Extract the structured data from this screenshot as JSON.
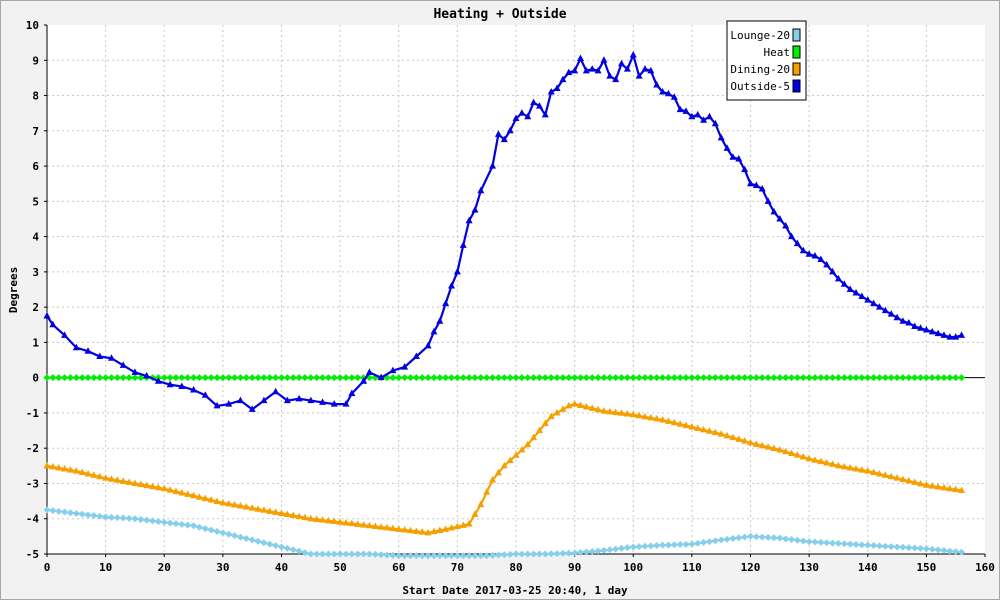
{
  "chart_data": {
    "type": "line",
    "title": "Heating + Outside",
    "xlabel": "Start Date 2017-03-25 20:40, 1 day",
    "ylabel": "Degrees",
    "xlim": [
      0,
      160
    ],
    "ylim": [
      -5,
      10
    ],
    "x_ticks": [
      0,
      10,
      20,
      30,
      40,
      50,
      60,
      70,
      80,
      90,
      100,
      110,
      120,
      130,
      140,
      150,
      160
    ],
    "y_ticks": [
      -5,
      -4,
      -3,
      -2,
      -1,
      0,
      1,
      2,
      3,
      4,
      5,
      6,
      7,
      8,
      9,
      10
    ],
    "grid": true,
    "legend_position": "top-right",
    "series": [
      {
        "name": "Lounge-20",
        "color": "#87ceeb",
        "marker": "diamond",
        "points": [
          [
            0,
            -3.75
          ],
          [
            5,
            -3.85
          ],
          [
            10,
            -3.95
          ],
          [
            15,
            -4.0
          ],
          [
            20,
            -4.1
          ],
          [
            25,
            -4.2
          ],
          [
            30,
            -4.4
          ],
          [
            35,
            -4.6
          ],
          [
            40,
            -4.8
          ],
          [
            45,
            -5.0
          ],
          [
            50,
            -5.0
          ],
          [
            55,
            -5.0
          ],
          [
            60,
            -5.05
          ],
          [
            65,
            -5.05
          ],
          [
            70,
            -5.05
          ],
          [
            75,
            -5.05
          ],
          [
            80,
            -5.0
          ],
          [
            85,
            -5.0
          ],
          [
            90,
            -4.97
          ],
          [
            95,
            -4.9
          ],
          [
            100,
            -4.8
          ],
          [
            105,
            -4.75
          ],
          [
            110,
            -4.72
          ],
          [
            115,
            -4.6
          ],
          [
            120,
            -4.5
          ],
          [
            125,
            -4.55
          ],
          [
            130,
            -4.65
          ],
          [
            135,
            -4.7
          ],
          [
            140,
            -4.75
          ],
          [
            145,
            -4.8
          ],
          [
            150,
            -4.85
          ],
          [
            156,
            -4.95
          ]
        ]
      },
      {
        "name": "Heat",
        "color": "#00ee00",
        "marker": "diamond",
        "points": [
          [
            0,
            0
          ],
          [
            156,
            0
          ]
        ]
      },
      {
        "name": "Dining-20",
        "color": "#f5a000",
        "marker": "triangle",
        "points": [
          [
            0,
            -2.5
          ],
          [
            5,
            -2.65
          ],
          [
            10,
            -2.85
          ],
          [
            15,
            -3.0
          ],
          [
            20,
            -3.15
          ],
          [
            25,
            -3.35
          ],
          [
            30,
            -3.55
          ],
          [
            35,
            -3.7
          ],
          [
            40,
            -3.85
          ],
          [
            45,
            -4.0
          ],
          [
            50,
            -4.1
          ],
          [
            55,
            -4.2
          ],
          [
            60,
            -4.3
          ],
          [
            65,
            -4.4
          ],
          [
            68,
            -4.3
          ],
          [
            72,
            -4.15
          ],
          [
            74,
            -3.6
          ],
          [
            76,
            -2.9
          ],
          [
            78,
            -2.5
          ],
          [
            82,
            -1.9
          ],
          [
            86,
            -1.1
          ],
          [
            89,
            -0.8
          ],
          [
            90,
            -0.75
          ],
          [
            95,
            -0.95
          ],
          [
            100,
            -1.05
          ],
          [
            105,
            -1.2
          ],
          [
            110,
            -1.4
          ],
          [
            115,
            -1.6
          ],
          [
            120,
            -1.85
          ],
          [
            125,
            -2.05
          ],
          [
            130,
            -2.3
          ],
          [
            135,
            -2.5
          ],
          [
            140,
            -2.65
          ],
          [
            145,
            -2.85
          ],
          [
            150,
            -3.05
          ],
          [
            156,
            -3.2
          ]
        ]
      },
      {
        "name": "Outside-5",
        "color": "#0000e0",
        "marker": "triangle",
        "points": [
          [
            0,
            1.75
          ],
          [
            1,
            1.5
          ],
          [
            3,
            1.2
          ],
          [
            5,
            0.85
          ],
          [
            7,
            0.75
          ],
          [
            9,
            0.6
          ],
          [
            11,
            0.55
          ],
          [
            13,
            0.35
          ],
          [
            15,
            0.15
          ],
          [
            17,
            0.05
          ],
          [
            19,
            -0.1
          ],
          [
            21,
            -0.2
          ],
          [
            23,
            -0.25
          ],
          [
            25,
            -0.35
          ],
          [
            27,
            -0.5
          ],
          [
            29,
            -0.8
          ],
          [
            31,
            -0.75
          ],
          [
            33,
            -0.65
          ],
          [
            35,
            -0.9
          ],
          [
            37,
            -0.65
          ],
          [
            39,
            -0.4
          ],
          [
            41,
            -0.65
          ],
          [
            43,
            -0.6
          ],
          [
            45,
            -0.65
          ],
          [
            47,
            -0.7
          ],
          [
            49,
            -0.75
          ],
          [
            51,
            -0.75
          ],
          [
            52,
            -0.45
          ],
          [
            54,
            -0.1
          ],
          [
            55,
            0.15
          ],
          [
            57,
            0.0
          ],
          [
            59,
            0.2
          ],
          [
            61,
            0.3
          ],
          [
            63,
            0.6
          ],
          [
            65,
            0.9
          ],
          [
            66,
            1.3
          ],
          [
            67,
            1.6
          ],
          [
            68,
            2.1
          ],
          [
            69,
            2.6
          ],
          [
            70,
            3.0
          ],
          [
            71,
            3.75
          ],
          [
            72,
            4.45
          ],
          [
            73,
            4.75
          ],
          [
            74,
            5.3
          ],
          [
            76,
            6.0
          ],
          [
            77,
            6.9
          ],
          [
            78,
            6.75
          ],
          [
            79,
            7.0
          ],
          [
            80,
            7.35
          ],
          [
            81,
            7.5
          ],
          [
            82,
            7.4
          ],
          [
            83,
            7.8
          ],
          [
            84,
            7.7
          ],
          [
            85,
            7.45
          ],
          [
            86,
            8.1
          ],
          [
            87,
            8.2
          ],
          [
            88,
            8.45
          ],
          [
            89,
            8.65
          ],
          [
            90,
            8.7
          ],
          [
            91,
            9.05
          ],
          [
            92,
            8.7
          ],
          [
            93,
            8.75
          ],
          [
            94,
            8.7
          ],
          [
            95,
            9.0
          ],
          [
            96,
            8.55
          ],
          [
            97,
            8.45
          ],
          [
            98,
            8.9
          ],
          [
            99,
            8.75
          ],
          [
            100,
            9.15
          ],
          [
            101,
            8.55
          ],
          [
            102,
            8.75
          ],
          [
            103,
            8.7
          ],
          [
            104,
            8.3
          ],
          [
            105,
            8.1
          ],
          [
            106,
            8.05
          ],
          [
            107,
            7.95
          ],
          [
            108,
            7.6
          ],
          [
            109,
            7.55
          ],
          [
            110,
            7.4
          ],
          [
            111,
            7.45
          ],
          [
            112,
            7.3
          ],
          [
            113,
            7.4
          ],
          [
            114,
            7.2
          ],
          [
            115,
            6.8
          ],
          [
            116,
            6.5
          ],
          [
            117,
            6.25
          ],
          [
            118,
            6.2
          ],
          [
            119,
            5.9
          ],
          [
            120,
            5.5
          ],
          [
            121,
            5.45
          ],
          [
            122,
            5.35
          ],
          [
            123,
            5.0
          ],
          [
            124,
            4.7
          ],
          [
            125,
            4.5
          ],
          [
            126,
            4.3
          ],
          [
            127,
            4.0
          ],
          [
            128,
            3.8
          ],
          [
            129,
            3.6
          ],
          [
            130,
            3.5
          ],
          [
            131,
            3.45
          ],
          [
            132,
            3.35
          ],
          [
            133,
            3.2
          ],
          [
            134,
            3.0
          ],
          [
            135,
            2.8
          ],
          [
            136,
            2.65
          ],
          [
            137,
            2.5
          ],
          [
            138,
            2.4
          ],
          [
            139,
            2.3
          ],
          [
            140,
            2.2
          ],
          [
            141,
            2.1
          ],
          [
            142,
            2.0
          ],
          [
            143,
            1.9
          ],
          [
            144,
            1.8
          ],
          [
            145,
            1.7
          ],
          [
            146,
            1.6
          ],
          [
            147,
            1.55
          ],
          [
            148,
            1.45
          ],
          [
            149,
            1.4
          ],
          [
            150,
            1.35
          ],
          [
            151,
            1.3
          ],
          [
            152,
            1.25
          ],
          [
            153,
            1.2
          ],
          [
            154,
            1.15
          ],
          [
            155,
            1.15
          ],
          [
            156,
            1.2
          ]
        ]
      }
    ]
  }
}
